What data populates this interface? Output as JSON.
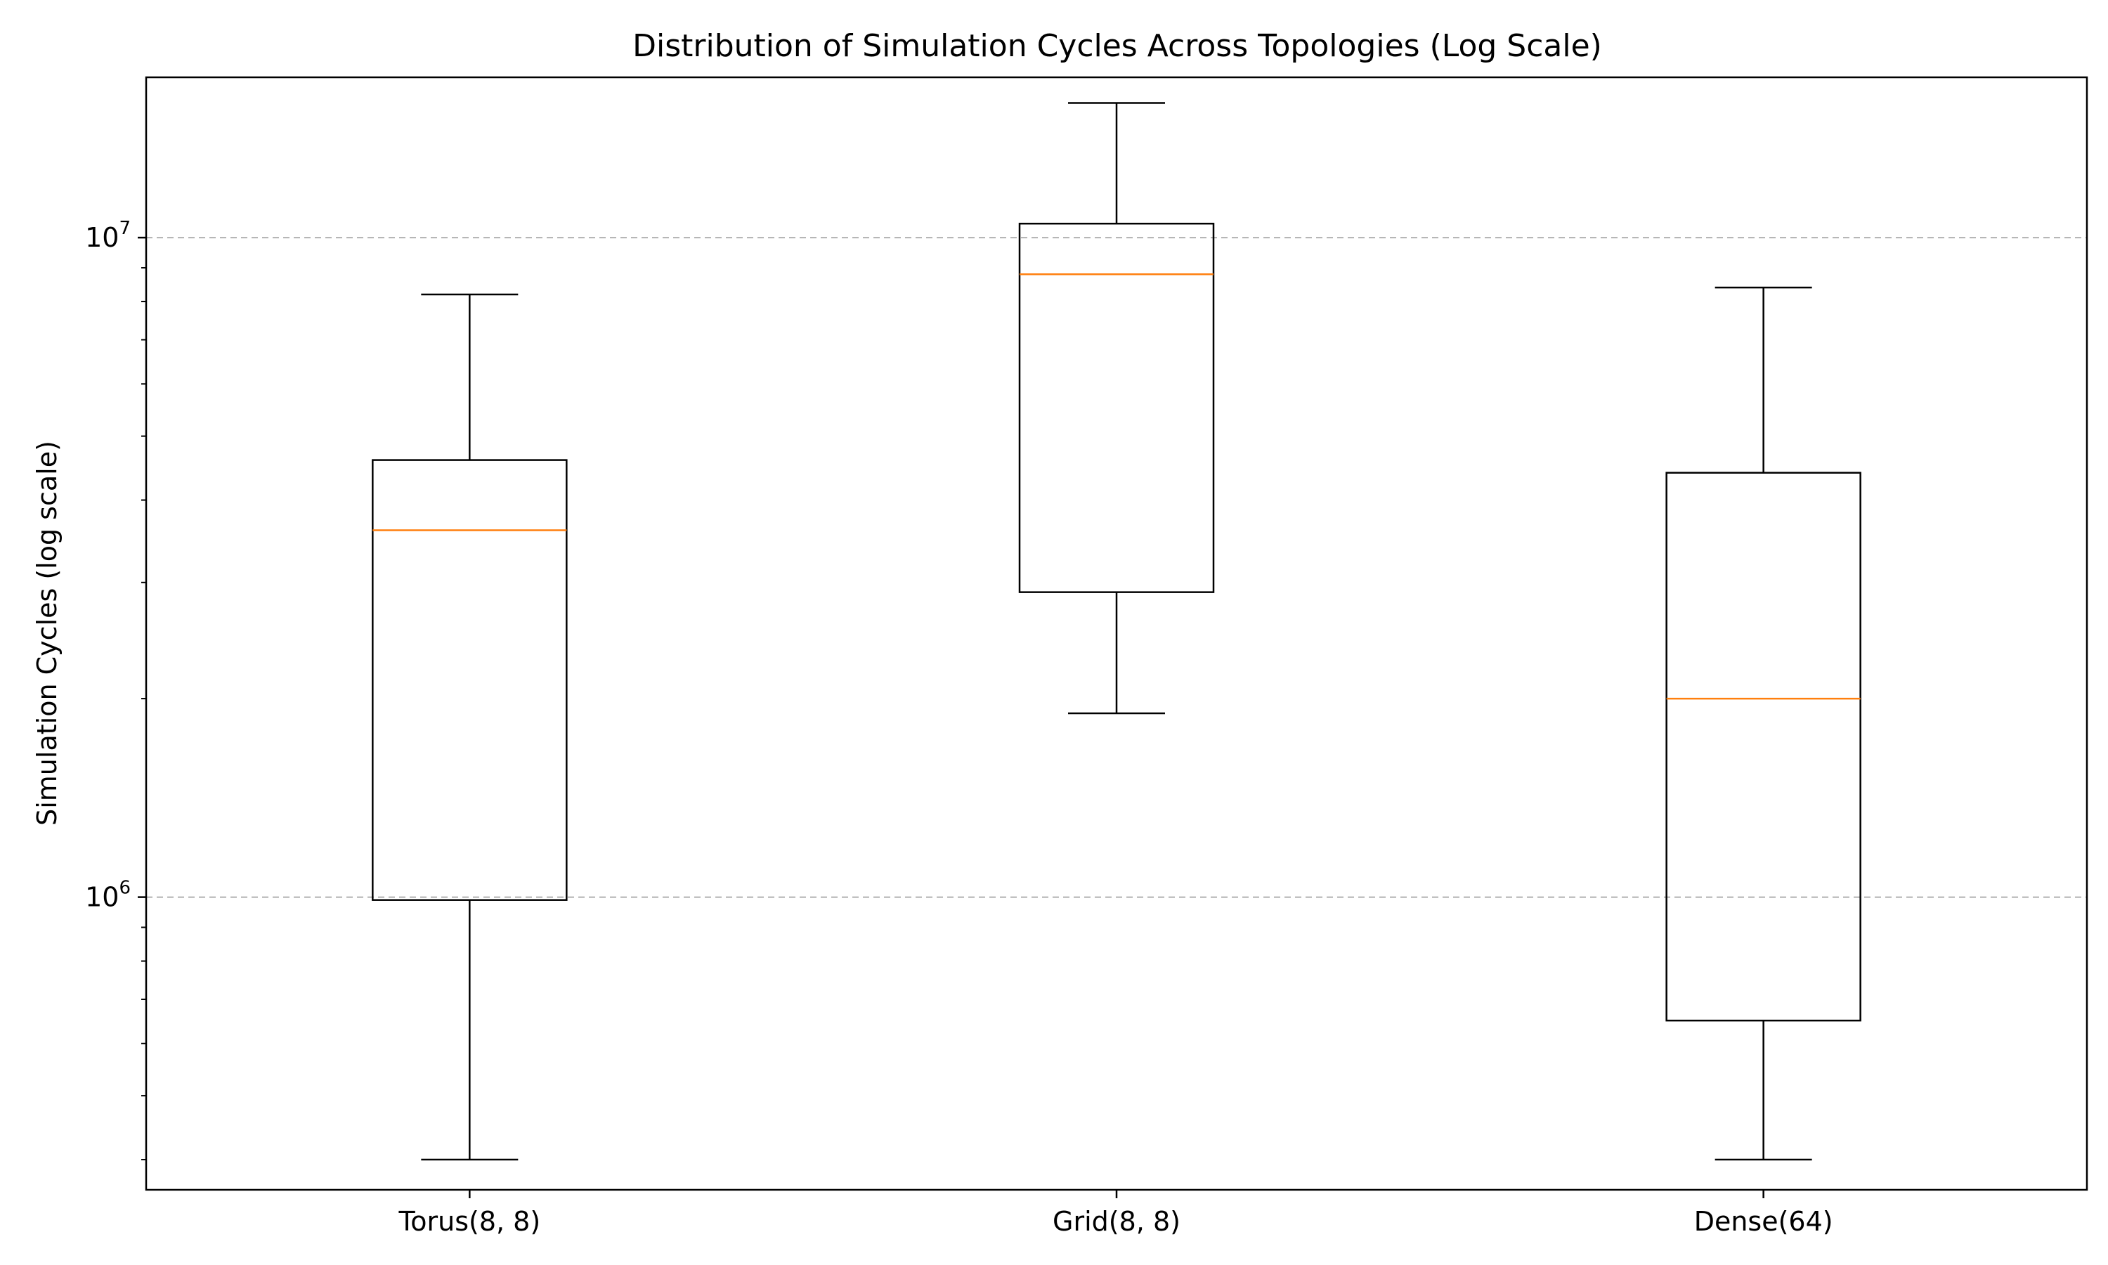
{
  "chart_data": {
    "type": "boxplot",
    "title": "Distribution of Simulation Cycles Across Topologies (Log Scale)",
    "xlabel": "",
    "ylabel": "Simulation Cycles (log scale)",
    "yscale": "log",
    "ylim": [
      360000,
      17500000
    ],
    "categories": [
      "Torus(8, 8)",
      "Grid(8, 8)",
      "Dense(64)"
    ],
    "boxes": [
      {
        "whislo": 400000,
        "q1": 990000,
        "med": 3600000,
        "q3": 4600000,
        "whishi": 8200000
      },
      {
        "whislo": 1900000,
        "q1": 2900000,
        "med": 8800000,
        "q3": 10500000,
        "whishi": 16000000
      },
      {
        "whislo": 400000,
        "q1": 650000,
        "med": 2000000,
        "q3": 4400000,
        "whishi": 8400000
      }
    ],
    "yticks": [
      {
        "value": 1000000,
        "base": "10",
        "exp": "6"
      },
      {
        "value": 10000000,
        "base": "10",
        "exp": "7"
      }
    ],
    "minor_ticks": [
      400000,
      500000,
      600000,
      700000,
      800000,
      900000,
      2000000,
      3000000,
      4000000,
      5000000,
      6000000,
      7000000,
      8000000,
      9000000
    ],
    "grid": {
      "axis": "y",
      "style": "dashed",
      "color": "#b0b0b0"
    },
    "colors": {
      "box": "#000000",
      "median": "#ff7f0e",
      "grid": "#b0b0b0"
    }
  }
}
